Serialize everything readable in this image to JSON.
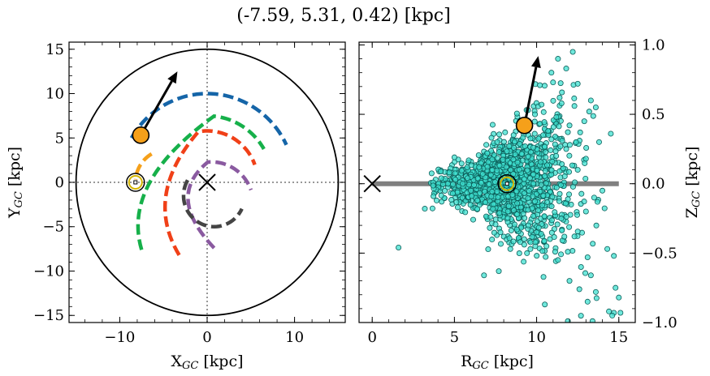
{
  "figure": {
    "title": "(-7.59, 5.31, 0.42) [kpc]"
  },
  "chart_data": [
    {
      "type": "line",
      "panel": "left",
      "title": "",
      "xlabel": "X_GC [kpc]",
      "ylabel": "Y_GC [kpc]",
      "xlim": [
        -15.8,
        15.8
      ],
      "ylim": [
        -15.8,
        15.8
      ],
      "xticks": [
        -10,
        0,
        10
      ],
      "xtick_labels": [
        "−10",
        "0",
        "10"
      ],
      "yticks": [
        -15,
        -10,
        -5,
        0,
        5,
        10,
        15
      ],
      "ytick_labels": [
        "−15",
        "−10",
        "−5",
        "0",
        "5",
        "10",
        "15"
      ],
      "grid": false,
      "boundary_circle": {
        "radius": 15,
        "color": "#000000"
      },
      "dotted_axes": {
        "x": 0,
        "y": 0,
        "color": "#777777"
      },
      "galactic_center": {
        "x": 0,
        "y": 0,
        "marker": "x"
      },
      "sun": {
        "x": -8.2,
        "y": 0.0,
        "marker": "sun-symbol",
        "color": "#d4b500"
      },
      "source": {
        "x": -7.59,
        "y": 5.31,
        "color": "#f5a01a"
      },
      "velocity_arrow": {
        "from": [
          -7.59,
          5.31
        ],
        "to": [
          -3.4,
          12.5
        ],
        "color": "#000000"
      },
      "spiral_arms": [
        {
          "color": "#1565a8",
          "radius": 10.0,
          "theta_start_deg": 150,
          "theta_end_deg": 25
        },
        {
          "color": "#f5a01a",
          "radius": 3.7,
          "center": [
            -4.5,
            0.0
          ],
          "theta_start_deg": 120,
          "theta_end_deg": 175
        },
        {
          "color": "#16b04a",
          "radius": 7.5,
          "theta_start_deg": 84,
          "theta_end_deg": 30,
          "start_point": [
            -7.5,
            -7.6
          ],
          "via": [
            -9.8,
            0.0
          ]
        },
        {
          "color": "#f04018",
          "radius": 5.8,
          "theta_start_deg": 100,
          "theta_end_deg": 20,
          "start_point": [
            -3.2,
            -8.2
          ],
          "via": [
            -7.3,
            -1.5
          ]
        },
        {
          "color": "#8a5aa0",
          "radius": 4.8,
          "center": [
            0.5,
            -2.5
          ],
          "theta_start_deg": 95,
          "theta_end_deg": 20,
          "start_point": [
            0.8,
            -7.4
          ],
          "via": [
            -4.8,
            -1.6
          ]
        },
        {
          "color": "#444444",
          "radius": 3.5,
          "center": [
            0.8,
            -1.5
          ],
          "theta_start_deg": 150,
          "theta_end_deg": 335
        }
      ]
    },
    {
      "type": "scatter",
      "panel": "right",
      "title": "",
      "xlabel": "R_GC [kpc]",
      "ylabel": "Z_GC [kpc]",
      "xlim": [
        -0.8,
        16.0
      ],
      "ylim": [
        -1.0,
        1.02
      ],
      "xticks": [
        0,
        5,
        10,
        15
      ],
      "xtick_labels": [
        "0",
        "5",
        "10",
        "15"
      ],
      "yticks": [
        -1.0,
        -0.5,
        0.0,
        0.5,
        1.0
      ],
      "ytick_labels": [
        "−1.0",
        "−0.5",
        "0.0",
        "0.5",
        "1.0"
      ],
      "ylabel_position": "right",
      "grid": false,
      "galactic_plane": {
        "x": [
          0,
          15
        ],
        "y": 0.0,
        "color": "#808080"
      },
      "galactic_center": {
        "x": 0,
        "y": 0,
        "marker": "x"
      },
      "sun": {
        "x": 8.2,
        "y": 0.0,
        "marker": "sun-symbol",
        "color": "#d4b500"
      },
      "source": {
        "x": 9.26,
        "y": 0.42,
        "color": "#f5a01a"
      },
      "velocity_arrow": {
        "from": [
          9.26,
          0.42
        ],
        "to": [
          10.1,
          0.92
        ],
        "color": "#000000"
      },
      "scatter_style": {
        "color": "#3fe0d0",
        "edge": "#0d5f5a",
        "count": 1400,
        "cluster_center": [
          8.2,
          0.0
        ]
      },
      "scatter_points": [
        [
          1.6,
          -0.46
        ],
        [
          3.2,
          -0.18
        ],
        [
          5.0,
          0.19
        ],
        [
          5.2,
          -0.17
        ],
        [
          6.8,
          -0.66
        ],
        [
          6.9,
          0.2
        ],
        [
          9.9,
          0.5
        ],
        [
          10.3,
          0.57
        ],
        [
          10.7,
          0.38
        ],
        [
          10.9,
          0.32
        ],
        [
          11.4,
          0.62
        ],
        [
          11.0,
          0.73
        ],
        [
          12.3,
          0.56
        ],
        [
          12.9,
          0.45
        ],
        [
          13.2,
          0.52
        ],
        [
          13.3,
          0.6
        ],
        [
          13.6,
          0.55
        ],
        [
          11.8,
          0.83
        ],
        [
          11.3,
          0.9
        ],
        [
          10.9,
          0.8
        ],
        [
          12.5,
          0.72
        ],
        [
          13.8,
          0.3
        ],
        [
          12.2,
          0.95
        ],
        [
          10.2,
          0.71
        ],
        [
          7.7,
          -0.63
        ],
        [
          8.4,
          -0.47
        ],
        [
          9.0,
          -0.42
        ],
        [
          10.6,
          -0.45
        ],
        [
          11.3,
          -0.55
        ],
        [
          11.9,
          -0.49
        ],
        [
          12.7,
          -0.6
        ],
        [
          13.1,
          -0.53
        ],
        [
          13.3,
          -0.66
        ],
        [
          14.3,
          -0.47
        ],
        [
          14.7,
          -0.52
        ],
        [
          12.3,
          -0.38
        ],
        [
          13.6,
          -0.78
        ],
        [
          13.1,
          -0.85
        ],
        [
          14.4,
          -0.92
        ],
        [
          14.8,
          -0.75
        ],
        [
          15.0,
          -0.82
        ],
        [
          15.1,
          -0.93
        ],
        [
          14.7,
          -0.93
        ],
        [
          14.6,
          -0.95
        ],
        [
          13.4,
          -0.99
        ],
        [
          11.9,
          -0.99
        ],
        [
          10.5,
          -0.87
        ],
        [
          12.0,
          -0.7
        ],
        [
          12.6,
          -0.76
        ],
        [
          9.5,
          -0.3
        ],
        [
          10.0,
          -0.35
        ],
        [
          11.5,
          -0.25
        ],
        [
          12.1,
          -0.15
        ],
        [
          13.0,
          -0.2
        ],
        [
          13.5,
          -0.1
        ],
        [
          14.0,
          -0.05
        ],
        [
          12.5,
          0.1
        ],
        [
          11.8,
          0.25
        ],
        [
          12.4,
          0.3
        ],
        [
          13.0,
          0.18
        ],
        [
          12.0,
          0.42
        ],
        [
          11.2,
          0.48
        ],
        [
          10.4,
          0.35
        ],
        [
          9.8,
          0.26
        ],
        [
          5.8,
          0.04
        ],
        [
          6.0,
          -0.05
        ],
        [
          5.5,
          0.0
        ],
        [
          4.6,
          0.0
        ],
        [
          4.2,
          0.04
        ],
        [
          4.9,
          -0.07
        ],
        [
          6.5,
          0.12
        ],
        [
          6.4,
          -0.12
        ],
        [
          7.0,
          0.22
        ],
        [
          7.2,
          -0.24
        ],
        [
          7.6,
          0.3
        ],
        [
          7.8,
          -0.35
        ],
        [
          8.6,
          0.35
        ],
        [
          8.8,
          -0.33
        ]
      ]
    }
  ]
}
